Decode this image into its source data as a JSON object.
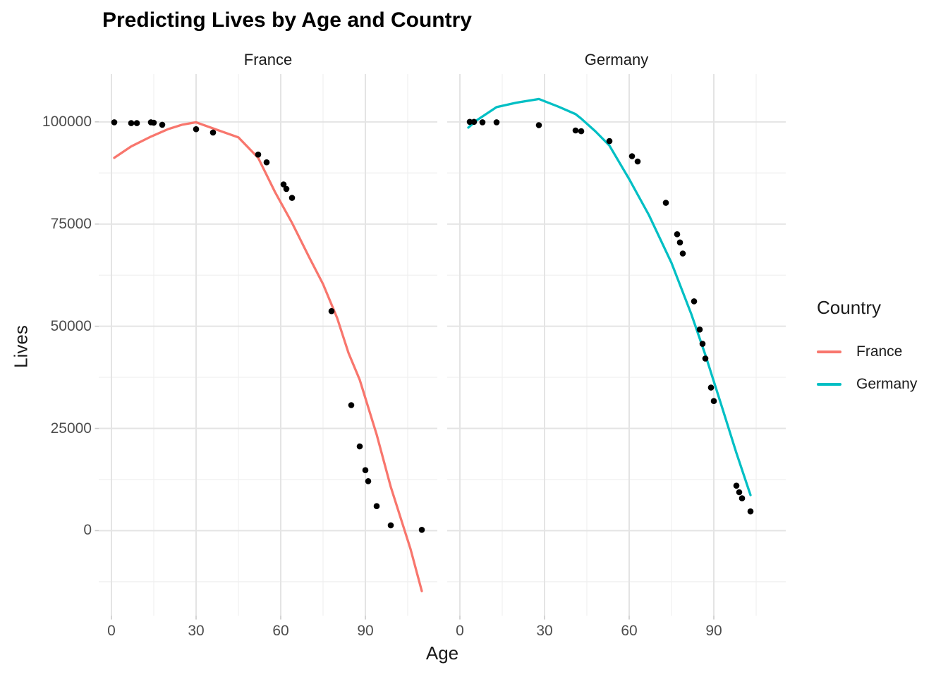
{
  "title": "Predicting Lives by Age and Country",
  "x_axis": {
    "title": "Age",
    "tick_labels": [
      "0",
      "30",
      "60",
      "90"
    ]
  },
  "y_axis": {
    "title": "Lives",
    "tick_labels": [
      "0",
      "25000",
      "50000",
      "75000",
      "100000"
    ]
  },
  "legend": {
    "title": "Country",
    "items": [
      {
        "label": "France",
        "color": "#F8766D"
      },
      {
        "label": "Germany",
        "color": "#00BFC4"
      }
    ]
  },
  "chart_data": {
    "type": "scatter",
    "title": "Predicting Lives by Age and Country",
    "xlabel": "Age",
    "ylabel": "Lives",
    "xlim": [
      -4.5,
      115.5
    ],
    "ylim": [
      -20800,
      111700
    ],
    "x_major_ticks": [
      0,
      30,
      60,
      90
    ],
    "x_minor_ticks": [
      15,
      45,
      75,
      105
    ],
    "y_major_ticks": [
      0,
      25000,
      50000,
      75000,
      100000
    ],
    "y_minor_ticks": [
      -12500,
      12500,
      37500,
      62500,
      87500
    ],
    "grid": true,
    "legend_position": "right",
    "point_color": "#000000",
    "facets": [
      {
        "label": "France",
        "line_color": "#F8766D",
        "points": [
          [
            1,
            99900
          ],
          [
            7,
            99700
          ],
          [
            9,
            99700
          ],
          [
            14,
            99900
          ],
          [
            15,
            99800
          ],
          [
            18,
            99300
          ],
          [
            30,
            98200
          ],
          [
            36,
            97400
          ],
          [
            52,
            92000
          ],
          [
            55,
            90100
          ],
          [
            61,
            84700
          ],
          [
            62,
            83600
          ],
          [
            64,
            81400
          ],
          [
            78,
            53700
          ],
          [
            85,
            30700
          ],
          [
            88,
            20600
          ],
          [
            90,
            14800
          ],
          [
            91,
            12100
          ],
          [
            94,
            6000
          ],
          [
            99,
            1300
          ],
          [
            110,
            200
          ]
        ],
        "smooth_line": [
          [
            1,
            91200
          ],
          [
            7,
            94000
          ],
          [
            14,
            96400
          ],
          [
            20,
            98200
          ],
          [
            25,
            99300
          ],
          [
            30,
            99900
          ],
          [
            36,
            98400
          ],
          [
            45,
            96200
          ],
          [
            52,
            91200
          ],
          [
            58,
            82800
          ],
          [
            64,
            75300
          ],
          [
            70,
            67000
          ],
          [
            75,
            60300
          ],
          [
            80,
            52000
          ],
          [
            84,
            43500
          ],
          [
            88,
            36900
          ],
          [
            94,
            23500
          ],
          [
            99,
            10700
          ],
          [
            106,
            -4500
          ],
          [
            110,
            -14800
          ]
        ]
      },
      {
        "label": "Germany",
        "line_color": "#00BFC4",
        "points": [
          [
            3.5,
            100000
          ],
          [
            5,
            100000
          ],
          [
            8,
            99900
          ],
          [
            13,
            99900
          ],
          [
            28,
            99200
          ],
          [
            41,
            97900
          ],
          [
            43,
            97700
          ],
          [
            53,
            95300
          ],
          [
            61,
            91600
          ],
          [
            63,
            90300
          ],
          [
            73,
            80200
          ],
          [
            77,
            72500
          ],
          [
            78,
            70500
          ],
          [
            79,
            67800
          ],
          [
            83,
            56100
          ],
          [
            85,
            49200
          ],
          [
            86,
            45700
          ],
          [
            87,
            42100
          ],
          [
            89,
            35000
          ],
          [
            90,
            31700
          ],
          [
            98,
            11000
          ],
          [
            99,
            9400
          ],
          [
            100,
            7900
          ],
          [
            103,
            4700
          ]
        ],
        "smooth_line": [
          [
            3,
            98600
          ],
          [
            6,
            100400
          ],
          [
            13,
            103600
          ],
          [
            20,
            104700
          ],
          [
            28,
            105600
          ],
          [
            35,
            103700
          ],
          [
            41,
            101900
          ],
          [
            43,
            100800
          ],
          [
            48,
            97700
          ],
          [
            53,
            94200
          ],
          [
            60,
            86000
          ],
          [
            67,
            77200
          ],
          [
            75,
            65500
          ],
          [
            82,
            53000
          ],
          [
            87,
            43000
          ],
          [
            93,
            30000
          ],
          [
            98,
            19000
          ],
          [
            103,
            8700
          ]
        ]
      }
    ]
  }
}
